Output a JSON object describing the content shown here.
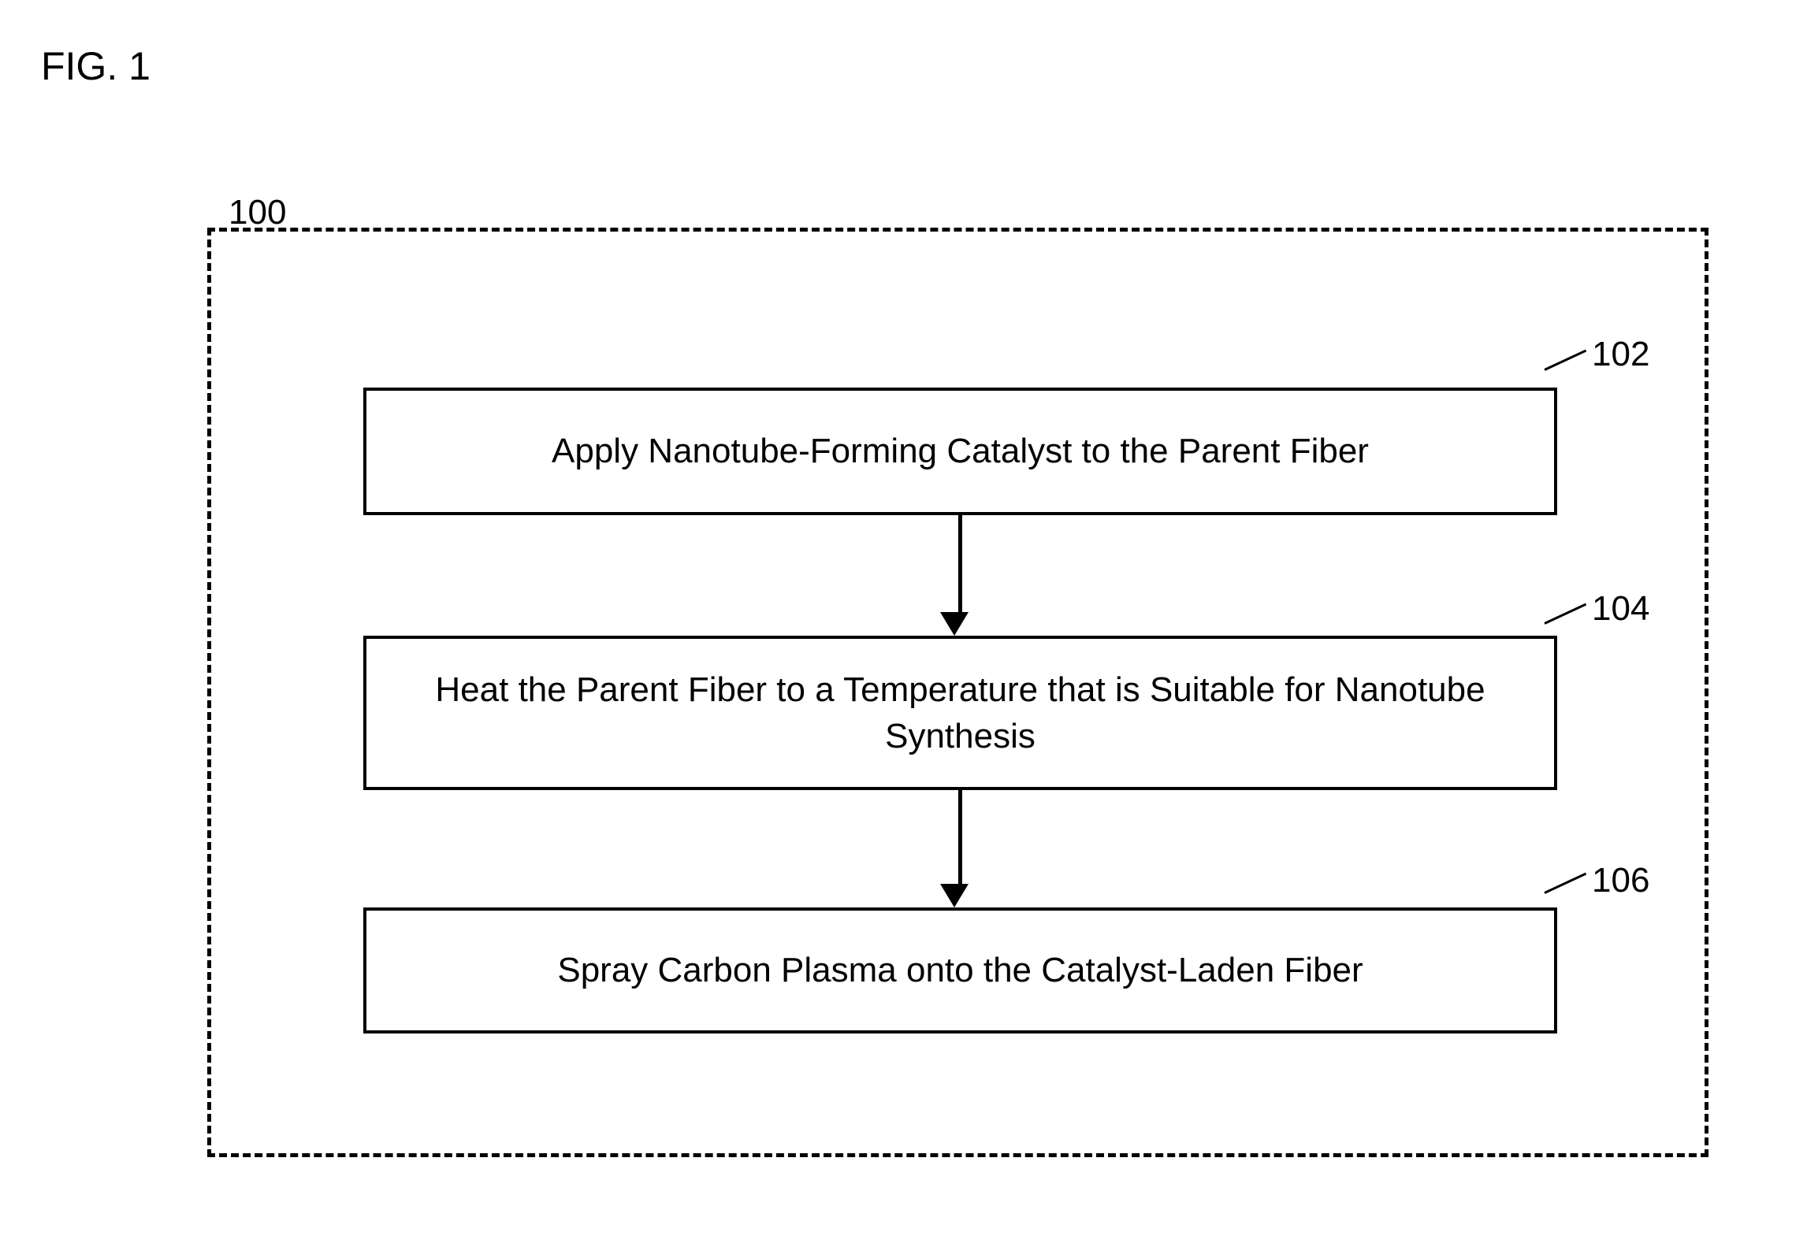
{
  "figure": {
    "title": "FIG. 1",
    "container_label": "100",
    "background_color": "#ffffff",
    "text_color": "#000000",
    "border_color": "#000000",
    "font_family": "Arial",
    "title_fontsize": 50,
    "label_fontsize": 44,
    "step_fontsize": 44
  },
  "flowchart": {
    "type": "flowchart",
    "container": {
      "border_style": "dashed",
      "border_width": 5,
      "border_color": "#000000"
    },
    "nodes": [
      {
        "id": "102",
        "ref_number": "102",
        "text": "Apply Nanotube-Forming Catalyst to the Parent Fiber",
        "border_width": 4,
        "border_color": "#000000",
        "fill_color": "#ffffff"
      },
      {
        "id": "104",
        "ref_number": "104",
        "text": "Heat the Parent Fiber to a Temperature that is Suitable for Nanotube Synthesis",
        "border_width": 4,
        "border_color": "#000000",
        "fill_color": "#ffffff"
      },
      {
        "id": "106",
        "ref_number": "106",
        "text": "Spray Carbon Plasma onto the Catalyst-Laden Fiber",
        "border_width": 4,
        "border_color": "#000000",
        "fill_color": "#ffffff"
      }
    ],
    "edges": [
      {
        "from": "102",
        "to": "104",
        "arrow_color": "#000000",
        "line_width": 5
      },
      {
        "from": "104",
        "to": "106",
        "arrow_color": "#000000",
        "line_width": 5
      }
    ]
  }
}
